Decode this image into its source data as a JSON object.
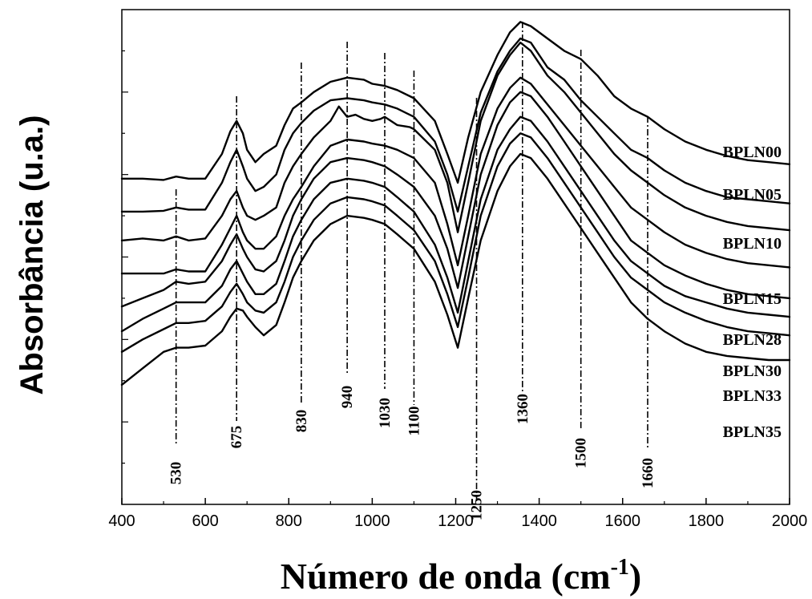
{
  "chart_data": {
    "type": "line",
    "title": "",
    "xlabel_main": "Número de onda (cm",
    "xlabel_sup": "-1",
    "xlabel_close": ")",
    "ylabel": "Absorbância (u.a.)",
    "xlim": [
      400,
      2000
    ],
    "x_ticks": [
      400,
      600,
      800,
      1000,
      1200,
      1400,
      1600,
      1800,
      2000
    ],
    "x_tick_labels": [
      "400",
      "600",
      "800",
      "1000",
      "1200",
      "1400",
      "1600",
      "1800",
      "2000"
    ],
    "y_ticks_labeled": false,
    "grid": false,
    "legend": "labels placed at right end of each trace",
    "reference_lines": [
      {
        "x": 530,
        "label": "530"
      },
      {
        "x": 675,
        "label": "675"
      },
      {
        "x": 830,
        "label": "830"
      },
      {
        "x": 940,
        "label": "940"
      },
      {
        "x": 1030,
        "label": "1030"
      },
      {
        "x": 1100,
        "label": "1100"
      },
      {
        "x": 1250,
        "label": "1250"
      },
      {
        "x": 1360,
        "label": "1360"
      },
      {
        "x": 1500,
        "label": "1500"
      },
      {
        "x": 1660,
        "label": "1660"
      }
    ],
    "series": [
      {
        "name": "BPLN00",
        "x": [
          400,
          450,
          500,
          530,
          560,
          600,
          640,
          660,
          675,
          690,
          700,
          720,
          740,
          770,
          790,
          810,
          830,
          860,
          900,
          940,
          980,
          1000,
          1030,
          1060,
          1100,
          1150,
          1180,
          1205,
          1230,
          1260,
          1300,
          1330,
          1355,
          1380,
          1420,
          1460,
          1500,
          1540,
          1580,
          1620,
          1660,
          1700,
          1750,
          1800,
          1850,
          1900,
          1950,
          2000
        ],
        "y": [
          0.79,
          0.79,
          0.787,
          0.795,
          0.79,
          0.79,
          0.85,
          0.905,
          0.93,
          0.9,
          0.86,
          0.83,
          0.85,
          0.87,
          0.92,
          0.96,
          0.975,
          1.0,
          1.025,
          1.035,
          1.03,
          1.02,
          1.015,
          1.005,
          0.985,
          0.93,
          0.85,
          0.78,
          0.89,
          1.0,
          1.09,
          1.145,
          1.17,
          1.16,
          1.13,
          1.1,
          1.08,
          1.04,
          0.99,
          0.96,
          0.94,
          0.91,
          0.88,
          0.86,
          0.845,
          0.835,
          0.83,
          0.825
        ]
      },
      {
        "name": "BPLN05",
        "x": [
          400,
          450,
          500,
          530,
          560,
          600,
          640,
          660,
          675,
          690,
          700,
          720,
          740,
          770,
          790,
          810,
          830,
          860,
          900,
          940,
          980,
          1000,
          1030,
          1060,
          1100,
          1150,
          1180,
          1205,
          1230,
          1260,
          1300,
          1330,
          1355,
          1380,
          1420,
          1460,
          1500,
          1540,
          1580,
          1620,
          1660,
          1700,
          1750,
          1800,
          1850,
          1900,
          1950,
          2000
        ],
        "y": [
          0.71,
          0.71,
          0.712,
          0.72,
          0.715,
          0.715,
          0.78,
          0.83,
          0.86,
          0.82,
          0.79,
          0.76,
          0.77,
          0.8,
          0.86,
          0.9,
          0.925,
          0.955,
          0.98,
          0.985,
          0.98,
          0.975,
          0.97,
          0.96,
          0.94,
          0.88,
          0.8,
          0.71,
          0.82,
          0.95,
          1.05,
          1.1,
          1.13,
          1.12,
          1.06,
          1.03,
          0.98,
          0.94,
          0.9,
          0.86,
          0.84,
          0.81,
          0.78,
          0.76,
          0.745,
          0.74,
          0.735,
          0.73
        ]
      },
      {
        "name": "BPLN10",
        "x": [
          400,
          450,
          500,
          530,
          560,
          600,
          640,
          660,
          675,
          690,
          700,
          720,
          740,
          770,
          790,
          810,
          830,
          860,
          900,
          920,
          940,
          960,
          980,
          1000,
          1020,
          1030,
          1060,
          1090,
          1100,
          1150,
          1180,
          1205,
          1230,
          1260,
          1300,
          1330,
          1355,
          1380,
          1420,
          1460,
          1500,
          1540,
          1580,
          1620,
          1660,
          1700,
          1750,
          1800,
          1850,
          1900,
          1950,
          2000
        ],
        "y": [
          0.64,
          0.645,
          0.64,
          0.65,
          0.64,
          0.645,
          0.7,
          0.74,
          0.76,
          0.72,
          0.7,
          0.69,
          0.7,
          0.72,
          0.78,
          0.82,
          0.85,
          0.89,
          0.93,
          0.965,
          0.94,
          0.945,
          0.935,
          0.93,
          0.935,
          0.94,
          0.92,
          0.915,
          0.91,
          0.86,
          0.78,
          0.66,
          0.78,
          0.93,
          1.04,
          1.09,
          1.12,
          1.1,
          1.04,
          1.0,
          0.95,
          0.9,
          0.85,
          0.81,
          0.78,
          0.75,
          0.72,
          0.7,
          0.685,
          0.675,
          0.67,
          0.665
        ]
      },
      {
        "name": "BPLN15",
        "x": [
          400,
          450,
          500,
          530,
          560,
          600,
          640,
          660,
          675,
          690,
          700,
          720,
          740,
          770,
          790,
          810,
          830,
          860,
          900,
          940,
          980,
          1000,
          1030,
          1060,
          1100,
          1150,
          1180,
          1205,
          1230,
          1260,
          1300,
          1330,
          1355,
          1380,
          1420,
          1460,
          1500,
          1540,
          1580,
          1620,
          1660,
          1700,
          1750,
          1800,
          1850,
          1900,
          1950,
          2000
        ],
        "y": [
          0.56,
          0.56,
          0.56,
          0.57,
          0.565,
          0.565,
          0.63,
          0.67,
          0.7,
          0.66,
          0.64,
          0.62,
          0.62,
          0.65,
          0.7,
          0.74,
          0.77,
          0.82,
          0.87,
          0.885,
          0.88,
          0.875,
          0.87,
          0.86,
          0.84,
          0.78,
          0.68,
          0.58,
          0.7,
          0.85,
          0.96,
          1.01,
          1.035,
          1.02,
          0.97,
          0.92,
          0.87,
          0.82,
          0.77,
          0.72,
          0.69,
          0.66,
          0.63,
          0.61,
          0.595,
          0.585,
          0.58,
          0.575
        ]
      },
      {
        "name": "BPLN28",
        "x": [
          400,
          450,
          500,
          530,
          560,
          600,
          640,
          660,
          675,
          690,
          700,
          720,
          740,
          770,
          790,
          810,
          830,
          860,
          900,
          940,
          980,
          1000,
          1030,
          1060,
          1100,
          1150,
          1180,
          1205,
          1230,
          1260,
          1300,
          1330,
          1355,
          1380,
          1420,
          1460,
          1500,
          1540,
          1580,
          1620,
          1660,
          1700,
          1750,
          1800,
          1850,
          1900,
          1950,
          2000
        ],
        "y": [
          0.48,
          0.5,
          0.52,
          0.54,
          0.535,
          0.54,
          0.59,
          0.63,
          0.655,
          0.62,
          0.6,
          0.57,
          0.565,
          0.59,
          0.64,
          0.7,
          0.74,
          0.79,
          0.83,
          0.84,
          0.835,
          0.83,
          0.82,
          0.8,
          0.77,
          0.7,
          0.62,
          0.525,
          0.65,
          0.8,
          0.92,
          0.975,
          1.0,
          0.99,
          0.94,
          0.88,
          0.82,
          0.76,
          0.7,
          0.64,
          0.61,
          0.58,
          0.555,
          0.535,
          0.52,
          0.51,
          0.505,
          0.5
        ]
      },
      {
        "name": "BPLN30",
        "x": [
          400,
          450,
          500,
          530,
          560,
          600,
          640,
          660,
          675,
          690,
          700,
          720,
          740,
          770,
          790,
          810,
          830,
          860,
          900,
          940,
          980,
          1000,
          1030,
          1060,
          1100,
          1150,
          1180,
          1205,
          1230,
          1260,
          1300,
          1330,
          1355,
          1380,
          1420,
          1460,
          1500,
          1540,
          1580,
          1620,
          1660,
          1700,
          1750,
          1800,
          1850,
          1900,
          1950,
          2000
        ],
        "y": [
          0.42,
          0.45,
          0.475,
          0.49,
          0.49,
          0.49,
          0.53,
          0.57,
          0.59,
          0.56,
          0.54,
          0.51,
          0.51,
          0.535,
          0.59,
          0.65,
          0.69,
          0.74,
          0.78,
          0.79,
          0.785,
          0.78,
          0.77,
          0.745,
          0.71,
          0.63,
          0.55,
          0.465,
          0.59,
          0.74,
          0.86,
          0.91,
          0.94,
          0.93,
          0.88,
          0.82,
          0.76,
          0.7,
          0.64,
          0.59,
          0.56,
          0.53,
          0.505,
          0.49,
          0.475,
          0.465,
          0.46,
          0.455
        ]
      },
      {
        "name": "BPLN33",
        "x": [
          400,
          450,
          500,
          530,
          560,
          600,
          640,
          660,
          675,
          690,
          700,
          720,
          740,
          770,
          790,
          810,
          830,
          860,
          900,
          940,
          980,
          1000,
          1030,
          1060,
          1100,
          1150,
          1180,
          1205,
          1230,
          1260,
          1300,
          1330,
          1355,
          1380,
          1420,
          1460,
          1500,
          1540,
          1580,
          1620,
          1660,
          1700,
          1750,
          1800,
          1850,
          1900,
          1950,
          2000
        ],
        "y": [
          0.37,
          0.4,
          0.425,
          0.44,
          0.44,
          0.445,
          0.48,
          0.515,
          0.535,
          0.51,
          0.49,
          0.47,
          0.465,
          0.49,
          0.54,
          0.6,
          0.64,
          0.69,
          0.73,
          0.745,
          0.74,
          0.735,
          0.725,
          0.7,
          0.665,
          0.59,
          0.51,
          0.43,
          0.55,
          0.7,
          0.82,
          0.875,
          0.9,
          0.89,
          0.84,
          0.78,
          0.72,
          0.66,
          0.6,
          0.55,
          0.52,
          0.49,
          0.465,
          0.445,
          0.43,
          0.42,
          0.415,
          0.41
        ]
      },
      {
        "name": "BPLN35",
        "x": [
          400,
          450,
          500,
          530,
          560,
          600,
          640,
          660,
          675,
          690,
          700,
          720,
          740,
          770,
          790,
          810,
          830,
          860,
          900,
          940,
          980,
          1000,
          1030,
          1060,
          1100,
          1150,
          1180,
          1205,
          1230,
          1260,
          1300,
          1330,
          1355,
          1380,
          1420,
          1460,
          1500,
          1540,
          1580,
          1620,
          1660,
          1700,
          1750,
          1800,
          1850,
          1900,
          1950,
          2000
        ],
        "y": [
          0.29,
          0.33,
          0.37,
          0.38,
          0.38,
          0.385,
          0.42,
          0.455,
          0.475,
          0.47,
          0.455,
          0.43,
          0.41,
          0.435,
          0.49,
          0.55,
          0.59,
          0.64,
          0.68,
          0.7,
          0.695,
          0.69,
          0.68,
          0.655,
          0.62,
          0.54,
          0.46,
          0.38,
          0.5,
          0.64,
          0.76,
          0.82,
          0.85,
          0.84,
          0.79,
          0.73,
          0.67,
          0.61,
          0.55,
          0.49,
          0.45,
          0.42,
          0.39,
          0.37,
          0.36,
          0.355,
          0.35,
          0.35
        ]
      }
    ]
  }
}
